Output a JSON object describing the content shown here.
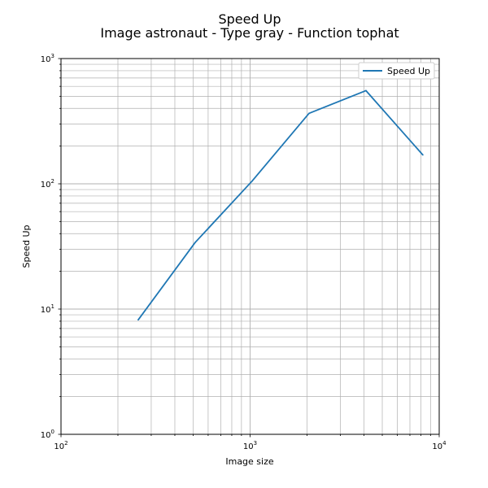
{
  "chart_data": {
    "type": "line",
    "title": "Speed Up",
    "subtitle": "Image astronaut - Type gray - Function tophat",
    "xlabel": "Image size",
    "ylabel": "Speed Up",
    "xscale": "log",
    "yscale": "log",
    "xlim": [
      100,
      10000
    ],
    "ylim": [
      1,
      1000
    ],
    "grid": "both (major and minor)",
    "legend_position": "top-right",
    "x_tick_labels": [
      {
        "base": "10",
        "exp": "2"
      },
      {
        "base": "10",
        "exp": "3"
      },
      {
        "base": "10",
        "exp": "4"
      }
    ],
    "y_tick_labels": [
      {
        "base": "10",
        "exp": "0"
      },
      {
        "base": "10",
        "exp": "1"
      },
      {
        "base": "10",
        "exp": "2"
      },
      {
        "base": "10",
        "exp": "3"
      }
    ],
    "series": [
      {
        "name": "Speed Up",
        "color": "#1f77b4",
        "x": [
          256,
          512,
          1024,
          2048,
          4096,
          8192
        ],
        "y": [
          8.2,
          34,
          105,
          365,
          555,
          170
        ]
      }
    ]
  }
}
